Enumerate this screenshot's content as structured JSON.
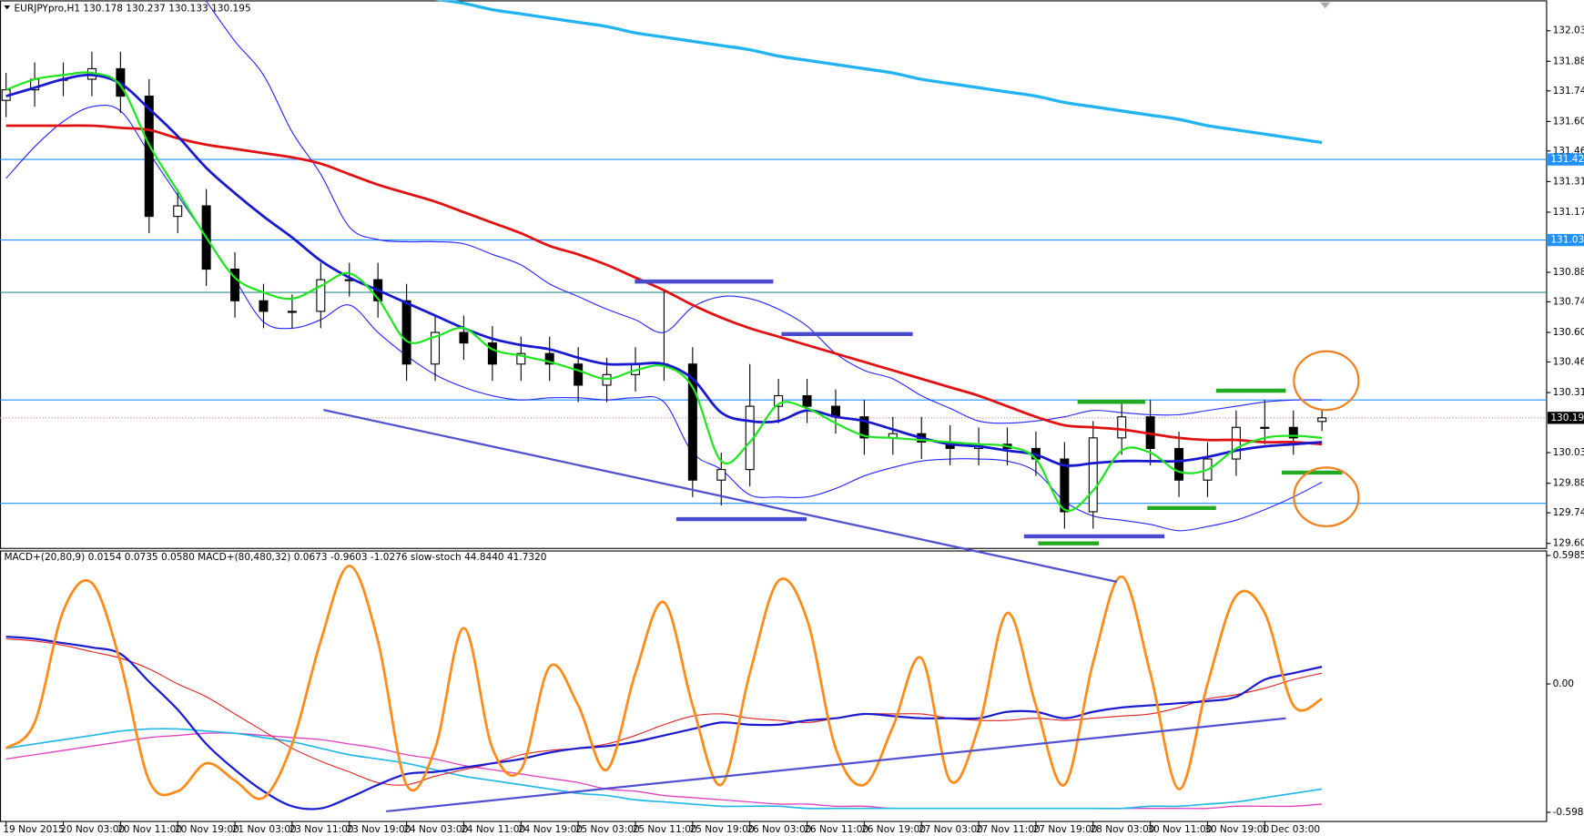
{
  "chart_data": [
    {
      "type": "candlestick",
      "title": "EURJPYpro,H1  130.178 130.237 130.133 130.195",
      "categories": [
        "19 Nov 2015",
        null,
        "20 Nov 03:00",
        null,
        "20 Nov 11:00",
        null,
        "20 Nov 19:00",
        null,
        "21 Nov 03:00",
        null,
        "23 Nov 11:00",
        null,
        "23 Nov 19:00",
        null,
        "24 Nov 03:00",
        null,
        "24 Nov 11:00",
        null,
        "24 Nov 19:00",
        null,
        "25 Nov 03:00",
        null,
        "25 Nov 11:00",
        null,
        "25 Nov 19:00",
        null,
        "26 Nov 03:00",
        null,
        "26 Nov 11:00",
        null,
        "26 Nov 19:00",
        null,
        "27 Nov 03:00",
        null,
        "27 Nov 11:00",
        null,
        "27 Nov 19:00",
        null,
        "28 Nov 03:00",
        null,
        "30 Nov 11:00",
        null,
        "30 Nov 19:00",
        null,
        "1 Dec 03:00",
        null,
        null
      ],
      "open": [
        131.7,
        131.75,
        131.8,
        131.8,
        131.85,
        131.72,
        131.15,
        131.2,
        130.9,
        130.75,
        130.7,
        130.7,
        130.85,
        130.85,
        130.75,
        130.45,
        130.6,
        130.55,
        130.45,
        130.5,
        130.45,
        130.35,
        130.4,
        130.45,
        130.45,
        129.9,
        129.95,
        130.25,
        130.3,
        130.25,
        130.2,
        130.1,
        130.12,
        130.08,
        130.05,
        130.07,
        130.05,
        130.0,
        129.75,
        130.1,
        130.2,
        130.05,
        129.9,
        130.0,
        130.15,
        130.15,
        130.178
      ],
      "high": [
        131.83,
        131.88,
        131.88,
        131.93,
        131.93,
        131.8,
        131.28,
        131.28,
        130.98,
        130.83,
        130.78,
        130.93,
        130.93,
        130.93,
        130.83,
        130.68,
        130.68,
        130.63,
        130.58,
        130.58,
        130.53,
        130.48,
        130.53,
        130.8,
        130.53,
        130.03,
        130.45,
        130.38,
        130.38,
        130.33,
        130.28,
        130.2,
        130.2,
        130.16,
        130.15,
        130.15,
        130.13,
        130.08,
        130.18,
        130.28,
        130.28,
        130.13,
        130.08,
        130.23,
        130.28,
        130.23,
        130.237
      ],
      "low": [
        131.62,
        131.67,
        131.72,
        131.72,
        131.64,
        131.07,
        131.07,
        130.82,
        130.67,
        130.62,
        130.62,
        130.62,
        130.77,
        130.67,
        130.37,
        130.37,
        130.47,
        130.37,
        130.37,
        130.37,
        130.27,
        130.27,
        130.32,
        130.37,
        129.82,
        129.78,
        129.87,
        130.17,
        130.17,
        130.12,
        130.02,
        130.02,
        130.0,
        129.97,
        129.97,
        129.97,
        129.92,
        129.67,
        129.67,
        130.02,
        129.97,
        129.82,
        129.82,
        129.92,
        130.07,
        130.02,
        130.133
      ],
      "close": [
        131.75,
        131.8,
        131.8,
        131.85,
        131.72,
        131.15,
        131.2,
        130.9,
        130.75,
        130.7,
        130.7,
        130.85,
        130.85,
        130.75,
        130.45,
        130.6,
        130.55,
        130.45,
        130.5,
        130.45,
        130.35,
        130.4,
        130.45,
        130.45,
        129.9,
        129.95,
        130.25,
        130.3,
        130.25,
        130.2,
        130.1,
        130.12,
        130.08,
        130.05,
        130.07,
        130.05,
        130.0,
        129.75,
        130.1,
        130.2,
        130.05,
        129.9,
        130.0,
        130.15,
        130.15,
        130.1,
        130.195
      ],
      "series": [
        {
          "color": "#2424ff",
          "width": 1,
          "values": [
            null,
            null,
            null,
            null,
            null,
            null,
            null,
            132.17,
            131.98,
            131.82,
            131.55,
            131.35,
            131.1,
            131.04,
            131.03,
            131.03,
            131.02,
            130.97,
            130.92,
            130.83,
            130.77,
            130.71,
            130.66,
            130.6,
            130.72,
            130.77,
            130.76,
            130.71,
            130.63,
            130.5,
            130.42,
            130.38,
            130.3,
            130.24,
            130.18,
            130.17,
            130.18,
            130.2,
            130.23,
            130.22,
            130.21,
            130.21,
            130.23,
            130.25,
            130.27,
            130.28,
            130.28
          ]
        },
        {
          "color": "#2424ff",
          "width": 1,
          "values": [
            131.33,
            131.48,
            131.6,
            131.67,
            131.65,
            131.45,
            131.25,
            131.05,
            130.85,
            130.65,
            130.62,
            130.66,
            130.73,
            130.6,
            130.49,
            130.4,
            130.34,
            130.3,
            130.28,
            130.29,
            130.29,
            130.28,
            130.29,
            130.27,
            130.03,
            129.95,
            129.83,
            129.82,
            129.82,
            129.86,
            129.92,
            129.96,
            129.99,
            130.0,
            130.0,
            129.99,
            129.94,
            129.8,
            129.73,
            129.71,
            129.69,
            129.66,
            129.68,
            129.71,
            129.76,
            129.82,
            129.89
          ]
        },
        {
          "color": "#e01010",
          "width": 2.5,
          "values": [
            131.58,
            131.58,
            131.58,
            131.58,
            131.57,
            131.56,
            131.52,
            131.49,
            131.47,
            131.45,
            131.43,
            131.4,
            131.35,
            131.3,
            131.26,
            131.22,
            131.17,
            131.12,
            131.07,
            131.01,
            130.97,
            130.92,
            130.86,
            130.8,
            130.73,
            130.67,
            130.62,
            130.58,
            130.54,
            130.5,
            130.46,
            130.42,
            130.38,
            130.34,
            130.3,
            130.25,
            130.2,
            130.16,
            130.15,
            130.14,
            130.12,
            130.1,
            130.09,
            130.09,
            130.08,
            130.08,
            130.07
          ]
        },
        {
          "color": "#1818d0",
          "width": 2.5,
          "values": [
            131.72,
            131.76,
            131.8,
            131.82,
            131.78,
            131.66,
            131.53,
            131.38,
            131.26,
            131.15,
            131.05,
            130.94,
            130.86,
            130.8,
            130.74,
            130.68,
            130.62,
            130.57,
            130.54,
            130.52,
            130.48,
            130.45,
            130.45,
            130.45,
            130.38,
            130.22,
            130.18,
            130.18,
            130.23,
            130.2,
            130.18,
            130.14,
            130.1,
            130.07,
            130.06,
            130.04,
            130.02,
            129.97,
            129.98,
            129.99,
            129.99,
            129.99,
            130.01,
            130.04,
            130.06,
            130.07,
            130.08
          ]
        },
        {
          "color": "#1ee61e",
          "width": 2,
          "values": [
            131.75,
            131.8,
            131.82,
            131.83,
            131.77,
            131.49,
            131.27,
            131.05,
            130.86,
            130.79,
            130.76,
            130.82,
            130.88,
            130.76,
            130.56,
            130.58,
            130.62,
            130.52,
            130.49,
            130.46,
            130.42,
            130.38,
            130.42,
            130.44,
            130.34,
            129.99,
            130.08,
            130.26,
            130.24,
            130.17,
            130.11,
            130.1,
            130.09,
            130.08,
            130.07,
            130.06,
            130.0,
            129.76,
            129.85,
            130.04,
            130.03,
            129.94,
            129.95,
            130.05,
            130.1,
            130.11,
            130.1
          ]
        },
        {
          "color": "#22b4f0",
          "width": 3,
          "values": [
            null,
            null,
            null,
            null,
            null,
            null,
            null,
            null,
            null,
            null,
            null,
            null,
            null,
            null,
            null,
            132.18,
            132.16,
            132.13,
            132.11,
            132.09,
            132.07,
            132.05,
            132.02,
            132.0,
            131.98,
            131.96,
            131.94,
            131.91,
            131.89,
            131.87,
            131.85,
            131.83,
            131.8,
            131.78,
            131.76,
            131.74,
            131.72,
            131.69,
            131.67,
            131.65,
            131.63,
            131.61,
            131.58,
            131.56,
            131.54,
            131.52,
            131.5
          ]
        }
      ],
      "ylim": [
        129.576,
        132.174
      ],
      "yticks": [
        {
          "value": 132.03,
          "label": "132.030"
        },
        {
          "value": 131.885,
          "label": "131.885"
        },
        {
          "value": 131.745,
          "label": "131.745"
        },
        {
          "value": 131.6,
          "label": "131.600"
        },
        {
          "value": 131.46,
          "label": "131.460"
        },
        {
          "value": 131.315,
          "label": "131.315"
        },
        {
          "value": 131.17,
          "label": "131.170"
        },
        {
          "value": 130.885,
          "label": "130.885"
        },
        {
          "value": 130.745,
          "label": "130.745"
        },
        {
          "value": 130.6,
          "label": "130.600"
        },
        {
          "value": 130.46,
          "label": "130.460"
        },
        {
          "value": 130.315,
          "label": "130.315"
        },
        {
          "value": 130.03,
          "label": "130.030"
        },
        {
          "value": 129.885,
          "label": "129.885"
        },
        {
          "value": 129.745,
          "label": "129.745"
        },
        {
          "value": 129.6,
          "label": "129.600"
        }
      ],
      "hlines": [
        131.42,
        131.038,
        130.79,
        130.28,
        129.79
      ],
      "price_labels": [
        {
          "value": 131.42,
          "label": "131.420"
        },
        {
          "value": 131.038,
          "label": "131.038"
        }
      ],
      "last_price": {
        "value": 130.195,
        "label": "130.195"
      }
    },
    {
      "type": "line",
      "title": "MACD+(20,80,9) 0.0154 0.0735 0.0580  MACD+(80,480,32) 0.0673 -0.9603 -1.0276  slow-stoch 44.8440 41.7320",
      "series": [
        {
          "color": "#e040c0",
          "width": 1.2,
          "values": [
            -0.35,
            -0.33,
            -0.31,
            -0.29,
            -0.27,
            -0.25,
            -0.24,
            -0.23,
            -0.23,
            -0.24,
            -0.25,
            -0.26,
            -0.28,
            -0.3,
            -0.33,
            -0.35,
            -0.38,
            -0.4,
            -0.42,
            -0.44,
            -0.46,
            -0.49,
            -0.5,
            -0.52,
            -0.53,
            -0.54,
            -0.55,
            -0.56,
            -0.56,
            -0.57,
            -0.57,
            -0.58,
            -0.58,
            -0.58,
            -0.58,
            -0.58,
            -0.58,
            -0.58,
            -0.58,
            -0.58,
            -0.58,
            -0.58,
            -0.58,
            -0.57,
            -0.57,
            -0.57,
            -0.56
          ]
        },
        {
          "color": "#20b8e8",
          "width": 1.5,
          "values": [
            -0.3,
            -0.28,
            -0.26,
            -0.24,
            -0.22,
            -0.21,
            -0.21,
            -0.22,
            -0.23,
            -0.25,
            -0.27,
            -0.3,
            -0.33,
            -0.35,
            -0.37,
            -0.4,
            -0.43,
            -0.45,
            -0.47,
            -0.49,
            -0.51,
            -0.52,
            -0.54,
            -0.55,
            -0.56,
            -0.57,
            -0.57,
            -0.57,
            -0.58,
            -0.58,
            -0.58,
            -0.58,
            -0.58,
            -0.58,
            -0.58,
            -0.58,
            -0.58,
            -0.58,
            -0.58,
            -0.58,
            -0.57,
            -0.57,
            -0.56,
            -0.55,
            -0.53,
            -0.51,
            -0.49
          ]
        },
        {
          "color": "#e02020",
          "width": 1,
          "values": [
            0.21,
            0.2,
            0.18,
            0.15,
            0.12,
            0.07,
            0.0,
            -0.06,
            -0.14,
            -0.22,
            -0.3,
            -0.36,
            -0.41,
            -0.46,
            -0.47,
            -0.43,
            -0.4,
            -0.37,
            -0.33,
            -0.31,
            -0.3,
            -0.28,
            -0.24,
            -0.19,
            -0.15,
            -0.14,
            -0.16,
            -0.17,
            -0.18,
            -0.16,
            -0.14,
            -0.14,
            -0.14,
            -0.16,
            -0.17,
            -0.17,
            -0.16,
            -0.17,
            -0.16,
            -0.15,
            -0.14,
            -0.11,
            -0.07,
            -0.05,
            -0.02,
            0.02,
            0.05
          ]
        },
        {
          "color": "#1a1ad0",
          "width": 2,
          "values": [
            0.22,
            0.21,
            0.19,
            0.17,
            0.14,
            0.01,
            -0.12,
            -0.28,
            -0.4,
            -0.5,
            -0.57,
            -0.58,
            -0.53,
            -0.47,
            -0.42,
            -0.41,
            -0.39,
            -0.37,
            -0.35,
            -0.32,
            -0.3,
            -0.29,
            -0.27,
            -0.24,
            -0.21,
            -0.18,
            -0.19,
            -0.19,
            -0.17,
            -0.16,
            -0.14,
            -0.15,
            -0.16,
            -0.16,
            -0.16,
            -0.13,
            -0.13,
            -0.16,
            -0.13,
            -0.11,
            -0.1,
            -0.09,
            -0.08,
            -0.06,
            0.02,
            0.05,
            0.08
          ]
        },
        {
          "color": "#ff8c1a",
          "width": 2.5,
          "values": [
            -0.3,
            -0.18,
            0.34,
            0.47,
            0.1,
            -0.45,
            -0.5,
            -0.37,
            -0.45,
            -0.53,
            -0.28,
            0.2,
            0.55,
            0.2,
            -0.47,
            -0.3,
            0.26,
            -0.3,
            -0.4,
            0.08,
            -0.1,
            -0.4,
            0.05,
            0.38,
            -0.1,
            -0.47,
            0.05,
            0.48,
            0.3,
            -0.3,
            -0.47,
            -0.2,
            0.12,
            -0.45,
            -0.2,
            0.33,
            -0.1,
            -0.47,
            0.1,
            0.5,
            0.05,
            -0.49,
            0.0,
            0.41,
            0.33,
            -0.1,
            -0.07
          ]
        }
      ],
      "ylim": [
        -0.641,
        0.617
      ],
      "yticks": [
        0.5985,
        {
          "value": 0,
          "label": "0.00"
        },
        -0.5985
      ]
    }
  ]
}
